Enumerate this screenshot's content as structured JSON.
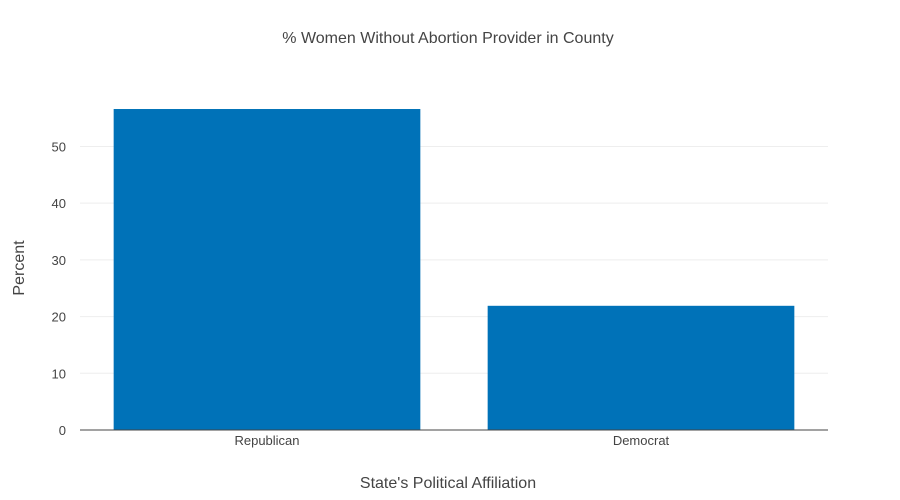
{
  "chart_data": {
    "type": "bar",
    "title": "% Women Without Abortion Provider in County",
    "xlabel": "State's Political Affiliation",
    "ylabel": "Percent",
    "categories": [
      "Republican",
      "Democrat"
    ],
    "values": [
      56.6,
      21.9
    ],
    "ylim": [
      0,
      59.6
    ],
    "yticks": [
      0,
      10,
      20,
      30,
      40,
      50
    ],
    "grid": true,
    "legend": "none",
    "bar_color": "#0072b8"
  }
}
